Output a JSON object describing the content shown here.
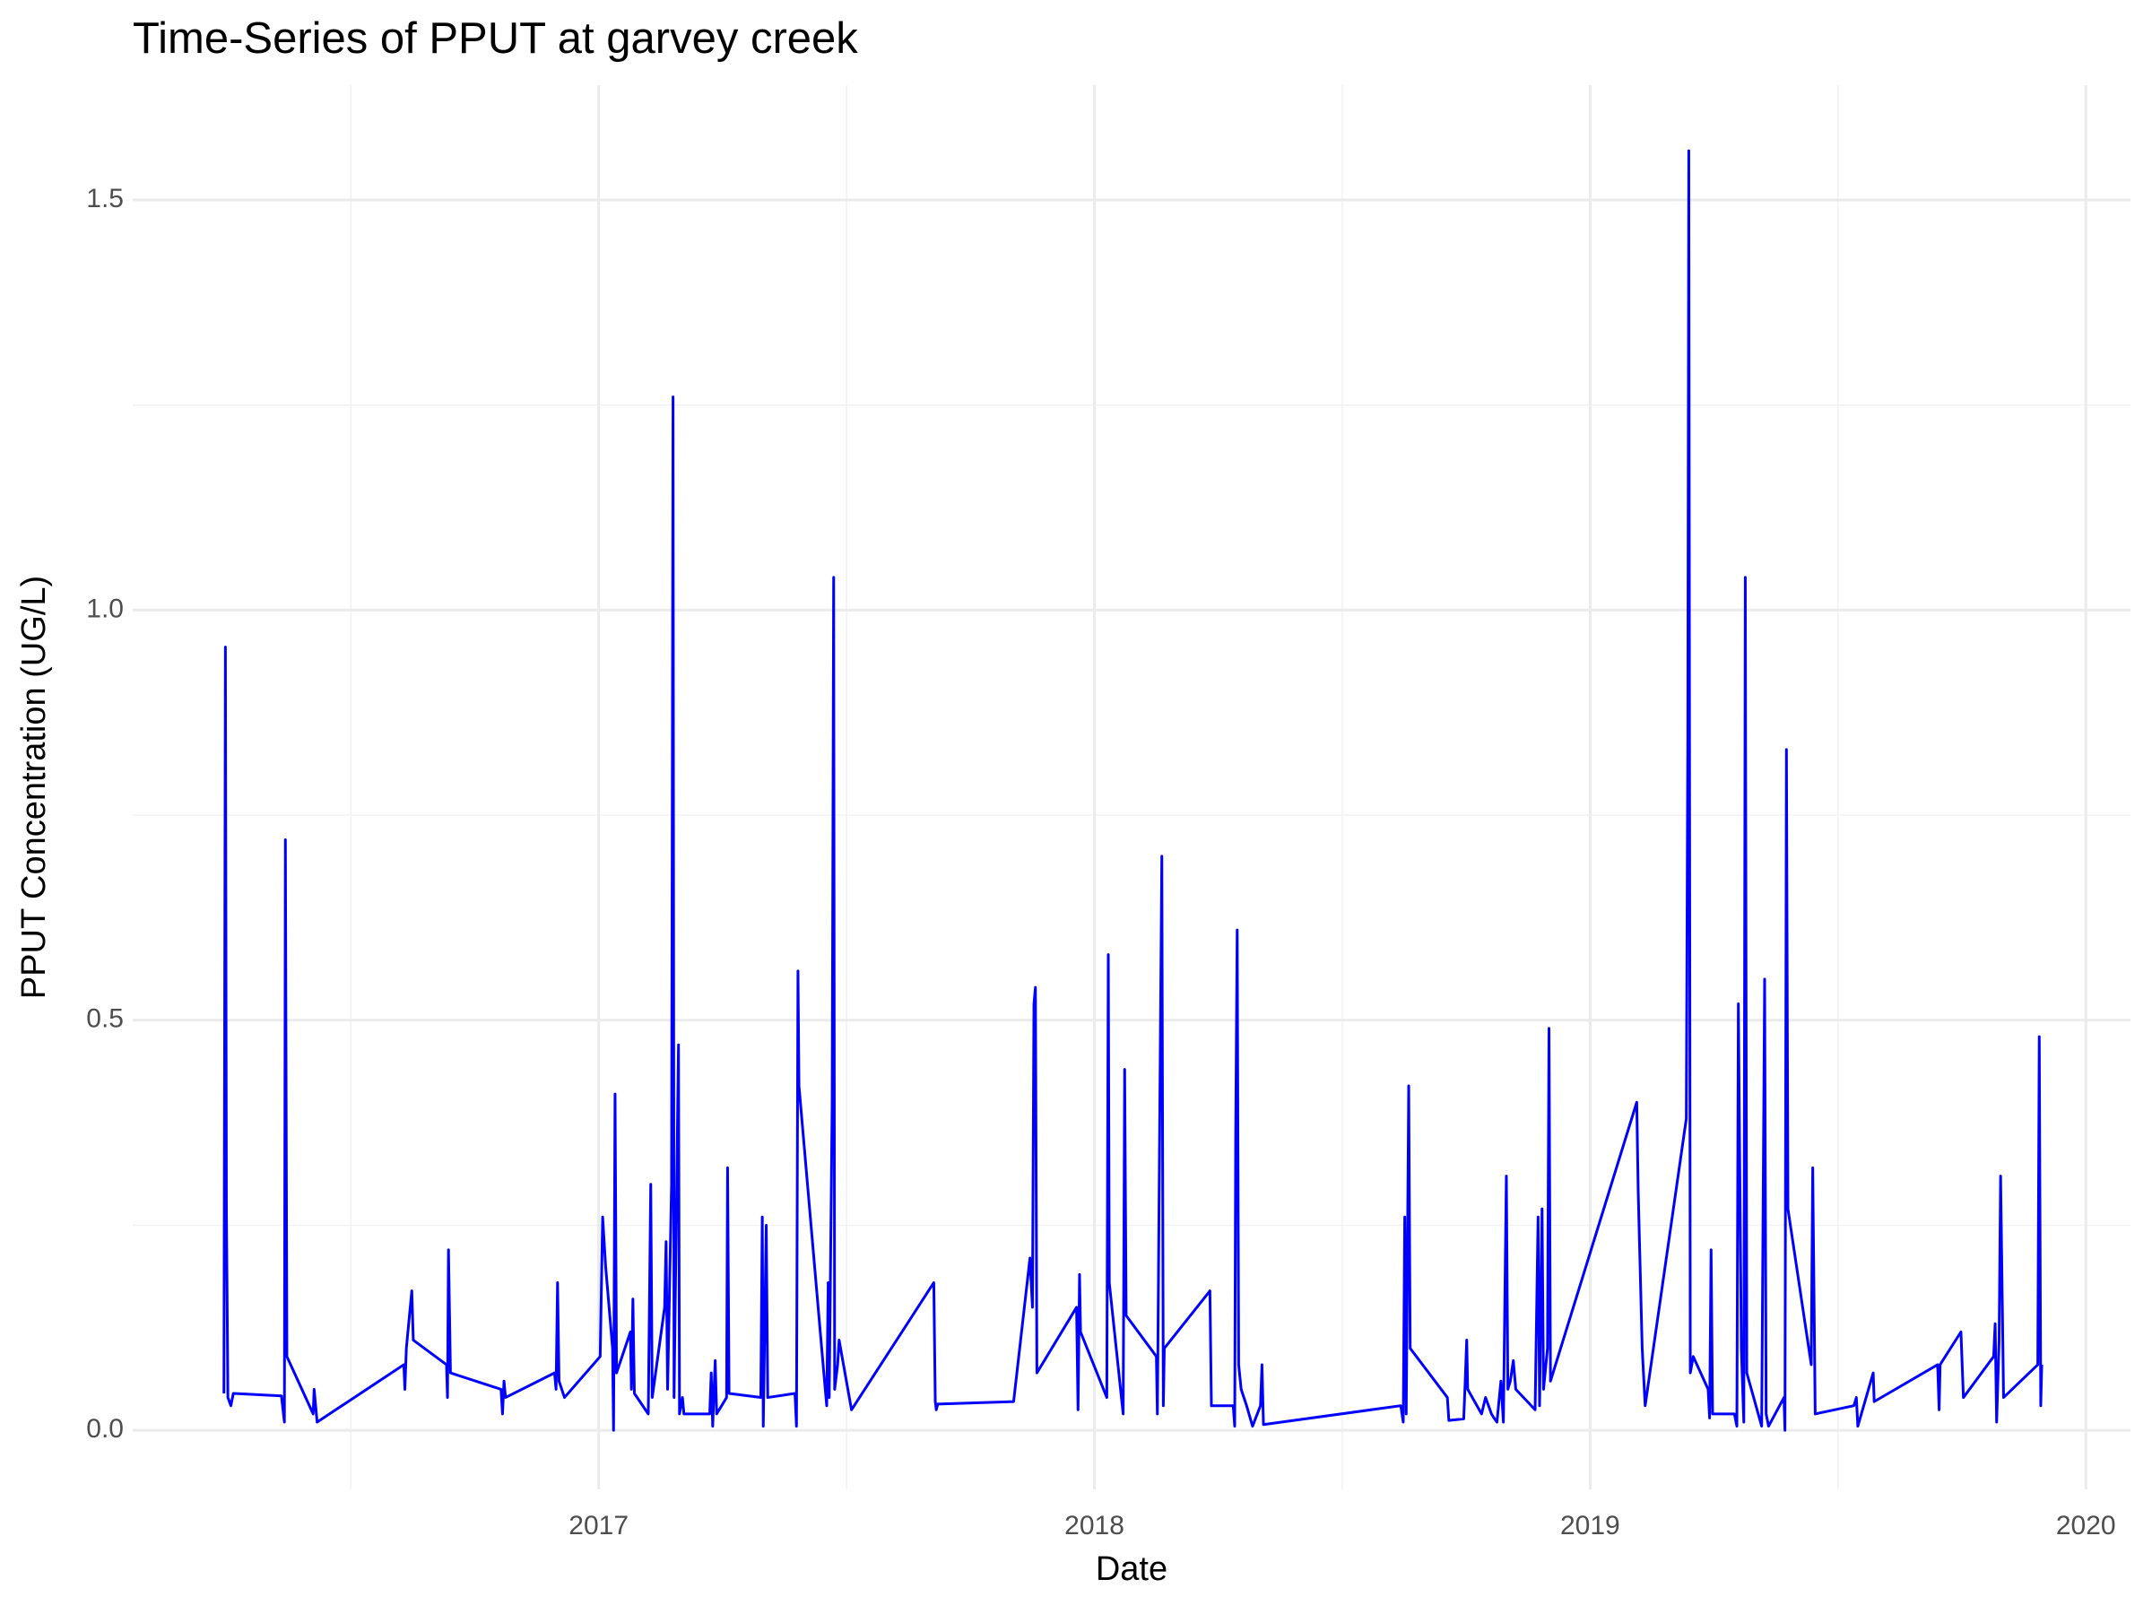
{
  "chart_data": {
    "type": "line",
    "title": "Time-Series of PPUT at garvey creek",
    "xlabel": "Date",
    "ylabel": "PPUT Concentration (UG/L)",
    "color": "#0000ff",
    "grid": true,
    "xlim": [
      2016.06,
      2020.09
    ],
    "ylim": [
      -0.072,
      1.64
    ],
    "xticks": [
      2017,
      2018,
      2019,
      2020
    ],
    "yticks": [
      {
        "value": 0,
        "label": "0.0"
      },
      {
        "value": 0.5,
        "label": "0.5"
      },
      {
        "value": 1,
        "label": "1.0"
      },
      {
        "value": 1.5,
        "label": "1.5"
      }
    ],
    "minor_xticks": [
      2016.5,
      2017.5,
      2018.5,
      2019.5
    ],
    "minor_yticks": [
      0.25,
      0.75,
      1.25
    ],
    "x": [
      2016.244,
      2016.247,
      2016.249,
      2016.252,
      2016.258,
      2016.263,
      2016.36,
      2016.366,
      2016.368,
      2016.371,
      2016.424,
      2016.426,
      2016.432,
      2016.607,
      2016.609,
      2016.612,
      2016.623,
      2016.626,
      2016.693,
      2016.695,
      2016.697,
      2016.701,
      2016.803,
      2016.806,
      2016.809,
      2016.812,
      2016.911,
      2016.914,
      2016.917,
      2016.92,
      2016.931,
      2017.003,
      2017.008,
      2017.014,
      2017.028,
      2017.03,
      2017.033,
      2017.036,
      2017.064,
      2017.066,
      2017.069,
      2017.072,
      2017.1,
      2017.105,
      2017.108,
      2017.133,
      2017.136,
      2017.139,
      2017.147,
      2017.15,
      2017.152,
      2017.161,
      2017.163,
      2017.169,
      2017.172,
      2017.224,
      2017.227,
      2017.23,
      2017.235,
      2017.238,
      2017.258,
      2017.26,
      2017.263,
      2017.327,
      2017.33,
      2017.332,
      2017.338,
      2017.341,
      2017.396,
      2017.399,
      2017.402,
      2017.404,
      2017.457,
      2017.46,
      2017.463,
      2017.465,
      2017.471,
      2017.474,
      2017.476,
      2017.482,
      2017.485,
      2017.51,
      2017.676,
      2017.679,
      2017.681,
      2017.684,
      2017.837,
      2017.87,
      2017.875,
      2017.878,
      2017.881,
      2017.884,
      2017.964,
      2017.967,
      2017.97,
      2017.972,
      2018.025,
      2018.028,
      2018.03,
      2018.058,
      2018.061,
      2018.064,
      2018.125,
      2018.127,
      2018.136,
      2018.139,
      2018.141,
      2018.233,
      2018.236,
      2018.28,
      2018.283,
      2018.285,
      2018.288,
      2018.291,
      2018.296,
      2018.307,
      2018.319,
      2018.335,
      2018.338,
      2018.341,
      2018.618,
      2018.623,
      2018.626,
      2018.629,
      2018.634,
      2018.637,
      2018.712,
      2018.715,
      2018.745,
      2018.748,
      2018.751,
      2018.753,
      2018.781,
      2018.789,
      2018.801,
      2018.806,
      2018.812,
      2018.82,
      2018.825,
      2018.831,
      2018.834,
      2018.839,
      2018.845,
      2018.85,
      2018.889,
      2018.895,
      2018.898,
      2018.903,
      2018.906,
      2018.914,
      2018.917,
      2018.92,
      2019.094,
      2019.097,
      2019.105,
      2019.111,
      2019.194,
      2019.197,
      2019.199,
      2019.202,
      2019.208,
      2019.238,
      2019.241,
      2019.244,
      2019.247,
      2019.291,
      2019.296,
      2019.299,
      2019.305,
      2019.31,
      2019.313,
      2019.316,
      2019.346,
      2019.352,
      2019.355,
      2019.36,
      2019.391,
      2019.393,
      2019.396,
      2019.399,
      2019.446,
      2019.449,
      2019.454,
      2019.532,
      2019.537,
      2019.54,
      2019.571,
      2019.573,
      2019.701,
      2019.704,
      2019.706,
      2019.748,
      2019.753,
      2019.814,
      2019.817,
      2019.82,
      2019.825,
      2019.828,
      2019.834,
      2019.903,
      2019.906,
      2019.909,
      2019.911
    ],
    "values": [
      0.045,
      0.955,
      0.27,
      0.04,
      0.03,
      0.045,
      0.042,
      0.01,
      0.72,
      0.09,
      0.02,
      0.05,
      0.01,
      0.08,
      0.05,
      0.1,
      0.17,
      0.11,
      0.08,
      0.04,
      0.22,
      0.07,
      0.05,
      0.02,
      0.06,
      0.04,
      0.07,
      0.05,
      0.18,
      0.06,
      0.04,
      0.09,
      0.26,
      0.2,
      0.1,
      0.0,
      0.41,
      0.07,
      0.12,
      0.05,
      0.16,
      0.045,
      0.02,
      0.3,
      0.04,
      0.15,
      0.23,
      0.05,
      0.3,
      1.26,
      0.04,
      0.47,
      0.02,
      0.04,
      0.02,
      0.02,
      0.07,
      0.005,
      0.085,
      0.02,
      0.04,
      0.32,
      0.045,
      0.04,
      0.26,
      0.005,
      0.25,
      0.04,
      0.045,
      0.005,
      0.56,
      0.42,
      0.05,
      0.03,
      0.18,
      0.04,
      0.4,
      1.04,
      0.05,
      0.08,
      0.11,
      0.025,
      0.18,
      0.035,
      0.025,
      0.032,
      0.035,
      0.21,
      0.15,
      0.52,
      0.54,
      0.07,
      0.15,
      0.025,
      0.19,
      0.12,
      0.04,
      0.58,
      0.18,
      0.02,
      0.44,
      0.14,
      0.09,
      0.02,
      0.7,
      0.03,
      0.1,
      0.17,
      0.03,
      0.03,
      0.005,
      0.36,
      0.61,
      0.08,
      0.05,
      0.03,
      0.005,
      0.03,
      0.08,
      0.007,
      0.03,
      0.01,
      0.26,
      0.02,
      0.42,
      0.1,
      0.04,
      0.012,
      0.014,
      0.06,
      0.11,
      0.05,
      0.02,
      0.04,
      0.02,
      0.015,
      0.01,
      0.06,
      0.01,
      0.31,
      0.05,
      0.06,
      0.085,
      0.05,
      0.025,
      0.26,
      0.03,
      0.27,
      0.05,
      0.1,
      0.49,
      0.06,
      0.4,
      0.29,
      0.1,
      0.03,
      0.38,
      0.84,
      1.56,
      0.07,
      0.09,
      0.05,
      0.015,
      0.22,
      0.02,
      0.02,
      0.005,
      0.52,
      0.1,
      0.01,
      1.04,
      0.07,
      0.005,
      0.55,
      0.02,
      0.005,
      0.04,
      0.0,
      0.83,
      0.27,
      0.08,
      0.32,
      0.02,
      0.03,
      0.04,
      0.005,
      0.07,
      0.035,
      0.08,
      0.025,
      0.08,
      0.12,
      0.04,
      0.09,
      0.13,
      0.01,
      0.11,
      0.31,
      0.04,
      0.08,
      0.48,
      0.03,
      0.08
    ]
  }
}
